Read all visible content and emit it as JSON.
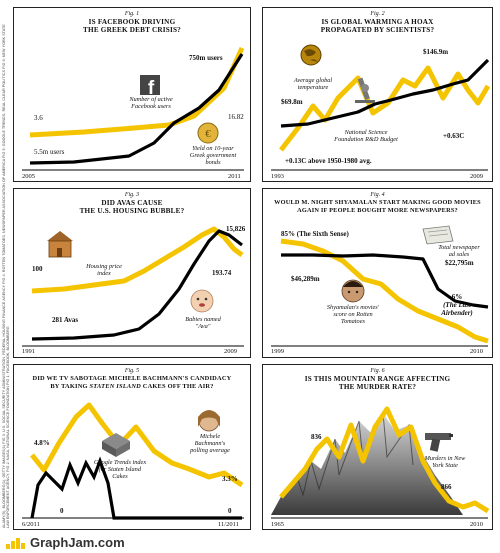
{
  "side_credit": "ALAMY(5), BLOOMBERG(1), GETTY IMAGES(1) FIG 3: U.S. SOCIAL SECURITY ADMINISTRATION, FEDERAL HOUSING FINANCE AGENCY FIG 4: ROTTEN TOMATOES, NEWSPAPER ASSOCIATION OF AMERICA FIG 5: GOOGLE TRENDS, REAL CLEAR POLITICS FIG 6: NEW YORK STATE LAW ENFORCEMENT AGENCY, FIG 2: NASA, NATIONAL SCIENCE FOUNDATION FIG 1: FACEBOOK, BLOOMBERG",
  "colors": {
    "yellow": "#f5c400",
    "black": "#000000",
    "frame": "#222222"
  },
  "panels": {
    "p1": {
      "fig": "Fig. 1",
      "q1": "IS FACEBOOK DRIVING",
      "q2": "THE GREEK DEBT CRISIS?",
      "x_start": "2005",
      "x_end": "2011",
      "label_a": "750m users",
      "label_b": "3.6",
      "label_c": "5.5m users",
      "label_d": "16.82",
      "caption_a": "Number of active Facebook users",
      "caption_b": "Yield on 10-year Greek government bonds",
      "icon_a": "facebook-logo-icon",
      "icon_b": "euro-coin-icon"
    },
    "p2": {
      "fig": "Fig. 2",
      "q1": "IS GLOBAL WARMING A HOAX",
      "q2": "PROPAGATED BY SCIENTISTS?",
      "x_start": "1993",
      "x_end": "2009",
      "label_a": "$69.8m",
      "label_b": "$146.9m",
      "label_c": "+0.63C",
      "label_d": "+0.13C above 1950-1980 avg.",
      "caption_a": "Average global temperature",
      "caption_b": "National Science Foundation R&D Budget",
      "icon_a": "globe-icon",
      "icon_b": "microscope-icon"
    },
    "p3": {
      "fig": "Fig. 3",
      "q1": "DID AVAS CAUSE",
      "q2": "THE U.S. HOUSING BUBBLE?",
      "x_start": "1991",
      "x_end": "2009",
      "label_a": "100",
      "label_b": "15,826",
      "label_c": "281 Avas",
      "label_d": "193.74",
      "caption_a": "Housing price index",
      "caption_b": "Babies named \"Ava\"",
      "icon_a": "house-icon",
      "icon_b": "baby-face-icon"
    },
    "p4": {
      "fig": "Fig. 4",
      "q1": "WOULD M. NIGHT SHYAMALAN START MAKING GOOD MOVIES",
      "q2": "AGAIN IF PEOPLE BOUGHT MORE NEWSPAPERS?",
      "x_start": "1999",
      "x_end": "2010",
      "label_a": "85% (The Sixth Sense)",
      "label_b": "$46,289m",
      "label_c": "$22,795m",
      "label_d1": "6%",
      "label_d2": "(The Last",
      "label_d3": "Airbender)",
      "caption_a": "Shyamalan's movies' score on Rotten Tomatoes",
      "caption_b": "Total newspaper ad sales",
      "icon_a": "director-face-icon",
      "icon_b": "newspaper-icon"
    },
    "p5": {
      "fig": "Fig. 5",
      "q1": "DID WE TV SABOTAGE MICHELE BACHMANN'S CANDIDACY",
      "q2a": "BY TAKING ",
      "q2b": "STATEN ISLAND",
      "q2c": " CAKES OFF THE AIR?",
      "x_start": "6/2011",
      "x_end": "11/2011",
      "label_a": "4.8%",
      "label_b": "0",
      "label_c": "3.3%",
      "label_d": "0",
      "caption_a": "Google Trends index for Staten Island Cakes",
      "caption_b": "Michele Bachmann's polling average",
      "icon_a": "cake-icon",
      "icon_b": "portrait-icon"
    },
    "p6": {
      "fig": "Fig. 6",
      "q1": "IS THIS MOUNTAIN RANGE AFFECTING",
      "q2": "THE MURDER RATE?",
      "x_start": "1965",
      "x_end": "2010",
      "label_a": "836",
      "label_b": "866",
      "caption_a": "Murders in New York State",
      "icon_a": "handgun-icon",
      "icon_b": "mountain-range-icon"
    }
  },
  "footer": {
    "brand": "GraphJam.com"
  },
  "chart_data": [
    {
      "type": "line",
      "title": "IS FACEBOOK DRIVING THE GREEK DEBT CRISIS?",
      "x_range": [
        "2005",
        "2011"
      ],
      "series": [
        {
          "name": "Number of active Facebook users",
          "values": [
            5.5,
            12,
            20,
            40,
            100,
            350,
            750
          ],
          "start": "5.5m users",
          "end": "750m users"
        },
        {
          "name": "Yield on 10-year Greek government bonds",
          "values": [
            3.6,
            3.9,
            4.3,
            4.5,
            5.2,
            9.5,
            16.82
          ],
          "start": "3.6",
          "end": "16.82"
        }
      ]
    },
    {
      "type": "line",
      "title": "IS GLOBAL WARMING A HOAX PROPAGATED BY SCIENTISTS?",
      "x_range": [
        "1993",
        "2009"
      ],
      "series": [
        {
          "name": "Average global temperature",
          "values": [
            0.13,
            0.25,
            0.4,
            0.3,
            0.45,
            0.6,
            0.35,
            0.4,
            0.55,
            0.6,
            0.55,
            0.5,
            0.65,
            0.55,
            0.58,
            0.48,
            0.63
          ]
        },
        {
          "name": "National Science Foundation R&D Budget",
          "values": [
            69.8,
            72,
            75,
            78,
            82,
            88,
            85,
            92,
            95,
            105,
            110,
            112,
            115,
            118,
            122,
            125,
            146.9
          ]
        }
      ]
    },
    {
      "type": "line",
      "title": "DID AVAS CAUSE THE U.S. HOUSING BUBBLE?",
      "x_range": [
        "1991",
        "2009"
      ],
      "series": [
        {
          "name": "Housing price index",
          "values": [
            100,
            102,
            104,
            107,
            110,
            114,
            118,
            124,
            131,
            140,
            150,
            162,
            176,
            192,
            210,
            222,
            218,
            205,
            193.74
          ]
        },
        {
          "name": "Babies named \"Ava\"",
          "values": [
            281,
            300,
            340,
            420,
            560,
            700,
            900,
            1200,
            1700,
            2300,
            3200,
            4500,
            6200,
            8500,
            11500,
            14500,
            15826,
            15200,
            14000
          ]
        }
      ]
    },
    {
      "type": "line",
      "title": "WOULD M. NIGHT SHYAMALAN START MAKING GOOD MOVIES AGAIN IF PEOPLE BOUGHT MORE NEWSPAPERS?",
      "x_range": [
        "1999",
        "2010"
      ],
      "series": [
        {
          "name": "Shyamalan's movies' score on Rotten Tomatoes",
          "values": [
            85,
            80,
            65,
            55,
            48,
            40,
            30,
            22,
            15,
            12,
            8,
            6
          ]
        },
        {
          "name": "Total newspaper ad sales",
          "values": [
            46289,
            48000,
            45000,
            44500,
            45000,
            46500,
            47000,
            46500,
            42000,
            35000,
            27500,
            22795
          ]
        }
      ]
    },
    {
      "type": "line",
      "title": "DID WE TV SABOTAGE MICHELE BACHMANN'S CANDIDACY BY TAKING STATEN ISLAND CAKES OFF THE AIR?",
      "x_range": [
        "6/2011",
        "11/2011"
      ],
      "series": [
        {
          "name": "Michele Bachmann's polling average",
          "values": [
            4.8,
            3.0,
            6.0,
            11.5,
            13.0,
            10.0,
            7.0,
            9.5,
            6.0,
            5.0,
            4.5,
            3.5,
            4.0,
            3.3
          ]
        },
        {
          "name": "Google Trends index for Staten Island Cakes",
          "values": [
            0,
            40,
            55,
            35,
            50,
            0,
            0,
            0,
            0,
            0,
            0,
            0,
            0,
            0
          ]
        }
      ]
    },
    {
      "type": "line",
      "title": "IS THIS MOUNTAIN RANGE AFFECTING THE MURDER RATE?",
      "x_range": [
        "1965",
        "2010"
      ],
      "series": [
        {
          "name": "Murders in New York State",
          "values": [
            836,
            1100,
            1400,
            1800,
            2000,
            1900,
            2200,
            1700,
            2100,
            2300,
            1850,
            2400,
            2000,
            1700,
            1400,
            1100,
            900,
            866
          ]
        }
      ]
    }
  ]
}
